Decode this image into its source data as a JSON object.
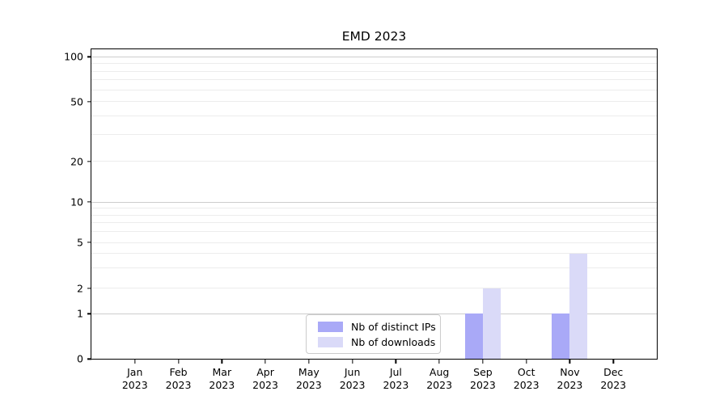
{
  "chart_data": {
    "type": "bar",
    "title": "EMD 2023",
    "categories": [
      "Jan",
      "Feb",
      "Mar",
      "Apr",
      "May",
      "Jun",
      "Jul",
      "Aug",
      "Sep",
      "Oct",
      "Nov",
      "Dec"
    ],
    "x_year_label": "2023",
    "series": [
      {
        "name": "Nb of distinct IPs",
        "color": "#a9a9f7",
        "values": [
          0,
          0,
          0,
          0,
          0,
          0,
          0,
          0,
          1,
          0,
          1,
          0
        ]
      },
      {
        "name": "Nb of downloads",
        "color": "#dadaf8",
        "values": [
          0,
          0,
          0,
          0,
          0,
          0,
          0,
          0,
          2,
          0,
          4,
          0
        ]
      }
    ],
    "y_axis": {
      "scale": "symlog",
      "labeled_ticks": [
        0,
        1,
        2,
        5,
        10,
        20,
        50,
        100
      ],
      "major_gridlines": [
        1,
        10,
        100
      ],
      "minor_gridlines": [
        2,
        3,
        4,
        5,
        6,
        7,
        8,
        9,
        20,
        30,
        40,
        50,
        60,
        70,
        80,
        90
      ],
      "ylim": [
        0,
        112
      ]
    },
    "legend": {
      "position": "lower center",
      "entries": [
        "Nb of distinct IPs",
        "Nb of downloads"
      ]
    },
    "grid": true
  }
}
